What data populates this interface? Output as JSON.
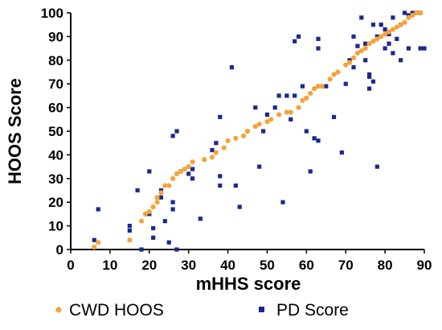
{
  "chart_data": {
    "type": "scatter",
    "xlabel": "mHHS score",
    "ylabel": "HOOS Score",
    "xlim": [
      0,
      90
    ],
    "ylim": [
      0,
      100
    ],
    "x_ticks": [
      "0",
      "10",
      "20",
      "30",
      "40",
      "50",
      "60",
      "70",
      "80",
      "90"
    ],
    "y_ticks": [
      "0",
      "10",
      "20",
      "30",
      "40",
      "50",
      "60",
      "70",
      "80",
      "90",
      "100"
    ],
    "grid": false,
    "legend_position": "bottom",
    "series": [
      {
        "name": "CWD HOOS",
        "marker": "circle",
        "color": "#F5A33C",
        "points": [
          [
            6,
            1
          ],
          [
            7,
            3
          ],
          [
            15,
            4
          ],
          [
            18,
            12
          ],
          [
            19,
            15
          ],
          [
            20,
            16
          ],
          [
            21,
            18
          ],
          [
            22,
            20
          ],
          [
            22,
            22
          ],
          [
            23,
            24
          ],
          [
            24,
            27
          ],
          [
            25,
            27
          ],
          [
            26,
            30
          ],
          [
            27,
            32
          ],
          [
            28,
            33
          ],
          [
            29,
            34
          ],
          [
            30,
            35
          ],
          [
            31,
            37
          ],
          [
            34,
            38
          ],
          [
            36,
            39
          ],
          [
            37,
            41
          ],
          [
            39,
            43
          ],
          [
            40,
            46
          ],
          [
            42,
            47
          ],
          [
            44,
            48
          ],
          [
            45,
            50
          ],
          [
            47,
            52
          ],
          [
            48,
            53
          ],
          [
            50,
            54
          ],
          [
            51,
            55
          ],
          [
            53,
            57
          ],
          [
            55,
            58
          ],
          [
            56,
            58
          ],
          [
            58,
            60
          ],
          [
            59,
            63
          ],
          [
            60,
            64
          ],
          [
            61,
            66
          ],
          [
            62,
            68
          ],
          [
            63,
            69
          ],
          [
            64,
            69
          ],
          [
            66,
            72
          ],
          [
            67,
            74
          ],
          [
            68,
            75
          ],
          [
            70,
            78
          ],
          [
            71,
            79
          ],
          [
            72,
            81
          ],
          [
            73,
            83
          ],
          [
            74,
            84
          ],
          [
            75,
            85
          ],
          [
            76,
            87
          ],
          [
            77,
            88
          ],
          [
            78,
            89
          ],
          [
            79,
            90
          ],
          [
            80,
            91
          ],
          [
            81,
            92
          ],
          [
            82,
            93
          ],
          [
            83,
            94
          ],
          [
            84,
            95
          ],
          [
            85,
            96
          ],
          [
            86,
            98
          ],
          [
            87,
            99
          ],
          [
            88,
            100
          ],
          [
            89,
            100
          ]
        ]
      },
      {
        "name": "PD Score",
        "marker": "square",
        "color": "#1A2A8C",
        "points": [
          [
            6,
            4
          ],
          [
            7,
            17
          ],
          [
            15,
            10
          ],
          [
            15,
            8
          ],
          [
            17,
            25
          ],
          [
            18,
            0
          ],
          [
            20,
            33
          ],
          [
            20,
            15
          ],
          [
            21,
            9
          ],
          [
            21,
            5
          ],
          [
            23,
            25
          ],
          [
            23,
            22
          ],
          [
            24,
            12
          ],
          [
            25,
            3
          ],
          [
            26,
            48
          ],
          [
            26,
            17
          ],
          [
            26,
            20
          ],
          [
            27,
            0
          ],
          [
            27,
            50
          ],
          [
            28,
            33
          ],
          [
            30,
            32
          ],
          [
            31,
            30
          ],
          [
            31,
            34
          ],
          [
            33,
            13
          ],
          [
            36,
            42
          ],
          [
            37,
            45
          ],
          [
            38,
            56
          ],
          [
            38,
            31
          ],
          [
            38,
            27
          ],
          [
            41,
            77
          ],
          [
            42,
            27
          ],
          [
            43,
            18
          ],
          [
            47,
            60
          ],
          [
            48,
            35
          ],
          [
            49,
            50
          ],
          [
            50,
            57
          ],
          [
            52,
            60
          ],
          [
            53,
            65
          ],
          [
            54,
            20
          ],
          [
            55,
            65
          ],
          [
            56,
            55
          ],
          [
            57,
            65
          ],
          [
            57,
            88
          ],
          [
            58,
            90
          ],
          [
            59,
            69
          ],
          [
            60,
            50
          ],
          [
            61,
            33
          ],
          [
            62,
            47
          ],
          [
            63,
            89
          ],
          [
            63,
            85
          ],
          [
            63,
            46
          ],
          [
            65,
            69
          ],
          [
            67,
            56
          ],
          [
            69,
            41
          ],
          [
            70,
            70
          ],
          [
            71,
            80
          ],
          [
            72,
            77
          ],
          [
            72,
            90
          ],
          [
            73,
            86
          ],
          [
            74,
            98
          ],
          [
            75,
            87
          ],
          [
            75,
            80
          ],
          [
            76,
            74
          ],
          [
            76,
            68
          ],
          [
            76,
            73
          ],
          [
            77,
            71
          ],
          [
            77,
            95
          ],
          [
            78,
            90
          ],
          [
            78,
            35
          ],
          [
            79,
            95
          ],
          [
            80,
            85
          ],
          [
            80,
            93
          ],
          [
            81,
            91
          ],
          [
            81,
            87
          ],
          [
            82,
            83
          ],
          [
            82,
            98
          ],
          [
            83,
            89
          ],
          [
            84,
            95
          ],
          [
            84,
            80
          ],
          [
            85,
            100
          ],
          [
            86,
            85
          ],
          [
            86,
            99
          ],
          [
            87,
            100
          ],
          [
            88,
            100
          ],
          [
            89,
            100
          ],
          [
            89,
            85
          ],
          [
            90,
            85
          ]
        ]
      }
    ]
  }
}
